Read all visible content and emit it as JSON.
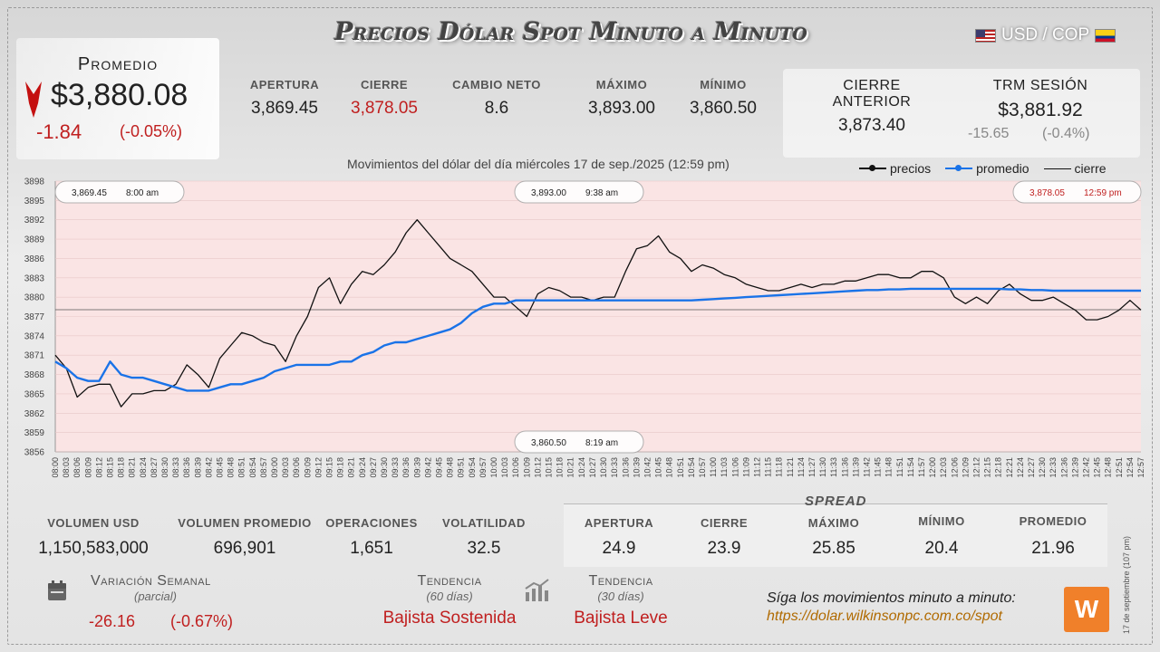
{
  "header": {
    "title": "Precios Dólar Spot Minuto a Minuto",
    "pair": "USD / COP"
  },
  "average": {
    "label": "Promedio",
    "value": "$3,880.08",
    "change": "-1.84",
    "change_pct": "(-0.05%)"
  },
  "stats": {
    "apertura": {
      "label": "APERTURA",
      "value": "3,869.45"
    },
    "cierre": {
      "label": "CIERRE",
      "value": "3,878.05"
    },
    "cambio_neto": {
      "label": "CAMBIO NETO",
      "value": "8.6"
    },
    "maximo": {
      "label": "MÁXIMO",
      "value": "3,893.00"
    },
    "minimo": {
      "label": "MÍNIMO",
      "value": "3,860.50"
    },
    "cierre_anterior": {
      "label": "CIERRE ANTERIOR",
      "value": "3,873.40"
    },
    "trm": {
      "label": "TRM SESIÓN",
      "value": "$3,881.92",
      "change": "-15.65",
      "change_pct": "(-0.4%)"
    }
  },
  "chart_data": {
    "type": "line",
    "title": "Movimientos del dólar del día miércoles 17 de sep./2025 (12:59 pm)",
    "ylim": [
      3856,
      3898
    ],
    "yticks": [
      3856,
      3859,
      3862,
      3865,
      3868,
      3871,
      3874,
      3877,
      3880,
      3883,
      3886,
      3889,
      3892,
      3895,
      3898
    ],
    "x": [
      "08:00",
      "08:03",
      "08:06",
      "08:09",
      "08:12",
      "08:15",
      "08:18",
      "08:21",
      "08:24",
      "08:27",
      "08:30",
      "08:33",
      "08:36",
      "08:39",
      "08:42",
      "08:45",
      "08:48",
      "08:51",
      "08:54",
      "08:57",
      "09:00",
      "09:03",
      "09:06",
      "09:09",
      "09:12",
      "09:15",
      "09:18",
      "09:21",
      "09:24",
      "09:27",
      "09:30",
      "09:33",
      "09:36",
      "09:39",
      "09:42",
      "09:45",
      "09:48",
      "09:51",
      "09:54",
      "09:57",
      "10:00",
      "10:03",
      "10:06",
      "10:09",
      "10:12",
      "10:15",
      "10:18",
      "10:21",
      "10:24",
      "10:27",
      "10:30",
      "10:33",
      "10:36",
      "10:39",
      "10:42",
      "10:45",
      "10:48",
      "10:51",
      "10:54",
      "10:57",
      "11:00",
      "11:03",
      "11:06",
      "11:09",
      "11:12",
      "11:15",
      "11:18",
      "11:21",
      "11:24",
      "11:27",
      "11:30",
      "11:33",
      "11:36",
      "11:39",
      "11:42",
      "11:45",
      "11:48",
      "11:51",
      "11:54",
      "11:57",
      "12:00",
      "12:03",
      "12:06",
      "12:09",
      "12:12",
      "12:15",
      "12:18",
      "12:21",
      "12:24",
      "12:27",
      "12:30",
      "12:33",
      "12:36",
      "12:39",
      "12:42",
      "12:45",
      "12:48",
      "12:51",
      "12:54",
      "12:57"
    ],
    "series": [
      {
        "name": "precios",
        "color": "#111111",
        "values": [
          3871,
          3869,
          3864.5,
          3866,
          3866.5,
          3866.5,
          3863,
          3865,
          3865,
          3865.5,
          3865.5,
          3866.5,
          3869.5,
          3868,
          3866,
          3870.5,
          3872.5,
          3874.5,
          3874,
          3873,
          3872.5,
          3870,
          3874,
          3877,
          3881.5,
          3883,
          3879,
          3882,
          3884,
          3883.5,
          3885,
          3887,
          3890,
          3892,
          3890,
          3888,
          3886,
          3885,
          3884,
          3882,
          3880,
          3880,
          3878.5,
          3877,
          3880.5,
          3881.5,
          3881,
          3880,
          3880,
          3879.5,
          3880,
          3880,
          3884,
          3887.5,
          3888,
          3889.5,
          3887,
          3886,
          3884,
          3885,
          3884.5,
          3883.5,
          3883,
          3882,
          3881.5,
          3881,
          3881,
          3881.5,
          3882,
          3881.5,
          3882,
          3882,
          3882.5,
          3882.5,
          3883,
          3883.5,
          3883.5,
          3883,
          3883,
          3884,
          3884,
          3883,
          3880,
          3879,
          3880,
          3879,
          3881,
          3882,
          3880.5,
          3879.5,
          3879.5,
          3880,
          3879,
          3878,
          3876.5,
          3876.5,
          3877,
          3878,
          3879.5,
          3878
        ]
      },
      {
        "name": "promedio",
        "color": "#1a73e8",
        "values": [
          3870,
          3869,
          3867.5,
          3867,
          3867,
          3870,
          3868,
          3867.5,
          3867.5,
          3867,
          3866.5,
          3866,
          3865.5,
          3865.5,
          3865.5,
          3866,
          3866.5,
          3866.5,
          3867,
          3867.5,
          3868.5,
          3869,
          3869.5,
          3869.5,
          3869.5,
          3869.5,
          3870,
          3870,
          3871,
          3871.5,
          3872.5,
          3873,
          3873,
          3873.5,
          3874,
          3874.5,
          3875,
          3876,
          3877.5,
          3878.5,
          3879,
          3879,
          3879.5,
          3879.5,
          3879.5,
          3879.5,
          3879.5,
          3879.5,
          3879.5,
          3879.5,
          3879.5,
          3879.5,
          3879.5,
          3879.5,
          3879.5,
          3879.5,
          3879.5,
          3879.5,
          3879.5,
          3879.6,
          3879.7,
          3879.8,
          3879.9,
          3880,
          3880.1,
          3880.2,
          3880.3,
          3880.4,
          3880.5,
          3880.6,
          3880.7,
          3880.8,
          3880.9,
          3881,
          3881.1,
          3881.1,
          3881.2,
          3881.2,
          3881.3,
          3881.3,
          3881.3,
          3881.3,
          3881.3,
          3881.3,
          3881.3,
          3881.3,
          3881.3,
          3881.2,
          3881.2,
          3881.1,
          3881.1,
          3881,
          3881,
          3881,
          3881,
          3881,
          3881,
          3881,
          3881,
          3881
        ]
      }
    ],
    "cierre_line": 3878.05,
    "legend": [
      "precios",
      "promedio",
      "cierre"
    ],
    "annotations": [
      {
        "value": "3,869.45",
        "time": "8:00 am"
      },
      {
        "value": "3,893.00",
        "time": "9:38 am"
      },
      {
        "value": "3,878.05",
        "time": "12:59 pm"
      },
      {
        "value": "3,860.50",
        "time": "8:19 am"
      }
    ]
  },
  "volume": {
    "vol_usd": {
      "label": "VOLUMEN USD",
      "value": "1,150,583,000"
    },
    "vol_prom": {
      "label": "VOLUMEN PROMEDIO",
      "value": "696,901"
    },
    "operaciones": {
      "label": "OPERACIONES",
      "value": "1,651"
    },
    "volatilidad": {
      "label": "VOLATILIDAD",
      "value": "32.5"
    }
  },
  "spread": {
    "title": "SPREAD",
    "apertura": {
      "label": "APERTURA",
      "value": "24.9"
    },
    "cierre": {
      "label": "CIERRE",
      "value": "23.9"
    },
    "maximo": {
      "label": "MÁXIMO",
      "value": "25.85"
    },
    "minimo": {
      "label": "MÍNIMO",
      "value": "20.4"
    },
    "promedio": {
      "label": "PROMEDIO",
      "value": "21.96"
    }
  },
  "weekly": {
    "label": "Variación Semanal",
    "sub": "(parcial)",
    "value": "-26.16",
    "pct": "(-0.67%)"
  },
  "trend60": {
    "label": "Tendencia",
    "sub": "(60 días)",
    "value": "Bajista Sostenida"
  },
  "trend30": {
    "label": "Tendencia",
    "sub": "(30 días)",
    "value": "Bajista Leve"
  },
  "footer": {
    "follow": "Síga los movimientos minuto a minuto:",
    "url": "https://dolar.wilkinsonpc.com.co/spot",
    "logo": "W",
    "vertical_date": "17 de septiembre (107 pm)"
  }
}
